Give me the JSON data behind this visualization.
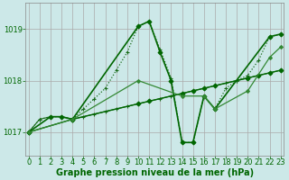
{
  "title": "Graphe pression niveau de la mer (hPa)",
  "bg_color": "#cce8e8",
  "grid_color": "#aaaaaa",
  "ylim": [
    1016.55,
    1019.5
  ],
  "yticks": [
    1017,
    1018,
    1019
  ],
  "xlim": [
    -0.3,
    23.3
  ],
  "xticks": [
    0,
    1,
    2,
    3,
    4,
    5,
    6,
    7,
    8,
    9,
    10,
    11,
    12,
    13,
    14,
    15,
    16,
    17,
    18,
    19,
    20,
    21,
    22,
    23
  ],
  "series": [
    {
      "x": [
        0,
        1,
        2,
        3,
        4,
        5,
        6,
        7,
        8,
        9,
        10,
        11,
        12,
        13,
        14,
        15,
        16,
        17,
        18,
        19,
        20,
        21,
        22,
        23
      ],
      "y": [
        1017.0,
        1017.25,
        1017.3,
        1017.3,
        1017.25,
        1017.45,
        1017.65,
        1017.85,
        1018.2,
        1018.55,
        1019.05,
        1019.15,
        1018.6,
        1018.05,
        1016.8,
        1016.8,
        1017.7,
        1017.45,
        1017.85,
        1018.0,
        1018.1,
        1018.4,
        1018.85,
        1018.9
      ],
      "color": "#1a6b1a",
      "lw": 0.9,
      "ls": "dotted",
      "marker": "+",
      "ms": 3.5
    },
    {
      "x": [
        0,
        1,
        2,
        3,
        4,
        5,
        6,
        7,
        8,
        9,
        10,
        11,
        12,
        13,
        14,
        15,
        16,
        17,
        18,
        19,
        20,
        21,
        22,
        23
      ],
      "y": [
        1017.0,
        1017.25,
        1017.3,
        1017.3,
        1017.25,
        1017.3,
        1017.35,
        1017.4,
        1017.45,
        1017.5,
        1017.55,
        1017.6,
        1017.65,
        1017.7,
        1017.75,
        1017.8,
        1017.85,
        1017.9,
        1017.95,
        1018.0,
        1018.05,
        1018.1,
        1018.15,
        1018.2
      ],
      "color": "#1a6b1a",
      "lw": 0.8,
      "ls": "solid",
      "marker": "+",
      "ms": 2.5
    },
    {
      "x": [
        0,
        2,
        3,
        4,
        10,
        11,
        12,
        13,
        14,
        15,
        16,
        17,
        22,
        23
      ],
      "y": [
        1017.0,
        1017.3,
        1017.3,
        1017.25,
        1019.05,
        1019.15,
        1018.55,
        1018.0,
        1016.8,
        1016.8,
        1017.7,
        1017.45,
        1018.85,
        1018.9
      ],
      "color": "#006600",
      "lw": 1.2,
      "ls": "solid",
      "marker": "D",
      "ms": 2.5
    },
    {
      "x": [
        0,
        4,
        10,
        11,
        14,
        15,
        16,
        17,
        20,
        21,
        22,
        23
      ],
      "y": [
        1017.0,
        1017.25,
        1017.55,
        1017.6,
        1017.75,
        1017.8,
        1017.85,
        1017.9,
        1018.05,
        1018.1,
        1018.15,
        1018.2
      ],
      "color": "#006600",
      "lw": 1.0,
      "ls": "solid",
      "marker": "D",
      "ms": 2.5
    },
    {
      "x": [
        0,
        4,
        10,
        14,
        16,
        17,
        20,
        22,
        23
      ],
      "y": [
        1017.0,
        1017.25,
        1018.0,
        1017.7,
        1017.7,
        1017.45,
        1017.8,
        1018.45,
        1018.65
      ],
      "color": "#338833",
      "lw": 0.9,
      "ls": "solid",
      "marker": "D",
      "ms": 2.0
    }
  ],
  "tick_fontsize": 6,
  "title_fontsize": 7,
  "title_color": "#006600",
  "tick_color": "#006600",
  "axis_color": "#888888",
  "bottom_label": "Graphe pression niveau de la mer (hPa)"
}
